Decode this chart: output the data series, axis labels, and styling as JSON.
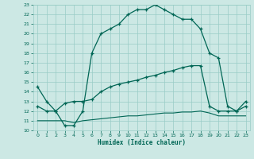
{
  "title": "",
  "xlabel": "Humidex (Indice chaleur)",
  "xlim": [
    -0.5,
    23.5
  ],
  "ylim": [
    10,
    23
  ],
  "yticks": [
    10,
    11,
    12,
    13,
    14,
    15,
    16,
    17,
    18,
    19,
    20,
    21,
    22,
    23
  ],
  "xticks": [
    0,
    1,
    2,
    3,
    4,
    5,
    6,
    7,
    8,
    9,
    10,
    11,
    12,
    13,
    14,
    15,
    16,
    17,
    18,
    19,
    20,
    21,
    22,
    23
  ],
  "bg_color": "#cce8e4",
  "grid_color": "#99ccc6",
  "line_color": "#006655",
  "line1_x": [
    0,
    1,
    2,
    3,
    4,
    5,
    6,
    7,
    8,
    9,
    10,
    11,
    12,
    13,
    14,
    15,
    16,
    17,
    18,
    19,
    20,
    21,
    22,
    23
  ],
  "line1_y": [
    14.5,
    13.0,
    12.0,
    10.5,
    10.5,
    12.0,
    18.0,
    20.0,
    20.5,
    21.0,
    22.0,
    22.5,
    22.5,
    23.0,
    22.5,
    22.0,
    21.5,
    21.5,
    20.5,
    18.0,
    17.5,
    12.5,
    12.0,
    13.0
  ],
  "line2_x": [
    0,
    1,
    2,
    3,
    4,
    5,
    6,
    7,
    8,
    9,
    10,
    11,
    12,
    13,
    14,
    15,
    16,
    17,
    18,
    19,
    20,
    21,
    22,
    23
  ],
  "line2_y": [
    12.5,
    12.0,
    12.0,
    12.8,
    13.0,
    13.0,
    13.2,
    14.0,
    14.5,
    14.8,
    15.0,
    15.2,
    15.5,
    15.7,
    16.0,
    16.2,
    16.5,
    16.7,
    16.7,
    12.5,
    12.0,
    12.0,
    12.0,
    12.5
  ],
  "line3_x": [
    0,
    1,
    2,
    3,
    4,
    5,
    6,
    7,
    8,
    9,
    10,
    11,
    12,
    13,
    14,
    15,
    16,
    17,
    18,
    19,
    20,
    21,
    22,
    23
  ],
  "line3_y": [
    11.0,
    11.0,
    11.0,
    11.0,
    10.8,
    11.0,
    11.1,
    11.2,
    11.3,
    11.4,
    11.5,
    11.5,
    11.6,
    11.7,
    11.8,
    11.8,
    11.9,
    11.9,
    12.0,
    11.8,
    11.5,
    11.5,
    11.5,
    11.5
  ]
}
